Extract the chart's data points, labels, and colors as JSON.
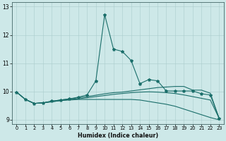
{
  "title": "",
  "xlabel": "Humidex (Indice chaleur)",
  "xlim": [
    -0.5,
    23.5
  ],
  "ylim": [
    8.85,
    13.15
  ],
  "yticks": [
    9,
    10,
    11,
    12,
    13
  ],
  "xticks": [
    0,
    1,
    2,
    3,
    4,
    5,
    6,
    7,
    8,
    9,
    10,
    11,
    12,
    13,
    14,
    15,
    16,
    17,
    18,
    19,
    20,
    21,
    22,
    23
  ],
  "bg_color": "#cde8e8",
  "grid_color": "#aacccc",
  "line_color": "#1a6e6a",
  "lines": [
    {
      "x": [
        0,
        1,
        2,
        3,
        4,
        5,
        6,
        7,
        8,
        9,
        10,
        11,
        12,
        13,
        14,
        15,
        16,
        17,
        18,
        19,
        20,
        21,
        22,
        23
      ],
      "y": [
        9.98,
        9.72,
        9.58,
        9.6,
        9.66,
        9.7,
        9.74,
        9.8,
        9.88,
        10.38,
        12.72,
        11.5,
        11.42,
        11.1,
        10.28,
        10.42,
        10.38,
        10.02,
        10.02,
        10.02,
        10.02,
        9.92,
        9.88,
        9.05
      ],
      "marker": true
    },
    {
      "x": [
        0,
        1,
        2,
        3,
        4,
        5,
        6,
        7,
        8,
        9,
        10,
        11,
        12,
        13,
        14,
        15,
        16,
        17,
        18,
        19,
        20,
        21,
        22,
        23
      ],
      "y": [
        9.98,
        9.72,
        9.58,
        9.6,
        9.66,
        9.7,
        9.74,
        9.78,
        9.82,
        9.87,
        9.92,
        9.96,
        9.98,
        10.02,
        10.06,
        10.1,
        10.14,
        10.16,
        10.18,
        10.18,
        10.05,
        10.05,
        9.94,
        9.05
      ],
      "marker": false
    },
    {
      "x": [
        0,
        1,
        2,
        3,
        4,
        5,
        6,
        7,
        8,
        9,
        10,
        11,
        12,
        13,
        14,
        15,
        16,
        17,
        18,
        19,
        20,
        21,
        22,
        23
      ],
      "y": [
        9.98,
        9.72,
        9.58,
        9.6,
        9.64,
        9.68,
        9.7,
        9.72,
        9.72,
        9.72,
        9.72,
        9.72,
        9.72,
        9.72,
        9.7,
        9.65,
        9.6,
        9.55,
        9.48,
        9.38,
        9.28,
        9.18,
        9.08,
        9.0
      ],
      "marker": false
    },
    {
      "x": [
        0,
        1,
        2,
        3,
        4,
        5,
        6,
        7,
        8,
        9,
        10,
        11,
        12,
        13,
        14,
        15,
        16,
        17,
        18,
        19,
        20,
        21,
        22,
        23
      ],
      "y": [
        9.98,
        9.72,
        9.58,
        9.6,
        9.64,
        9.68,
        9.72,
        9.74,
        9.78,
        9.82,
        9.86,
        9.9,
        9.93,
        9.96,
        9.98,
        9.99,
        9.98,
        9.96,
        9.93,
        9.88,
        9.82,
        9.76,
        9.7,
        9.05
      ],
      "marker": false
    }
  ]
}
